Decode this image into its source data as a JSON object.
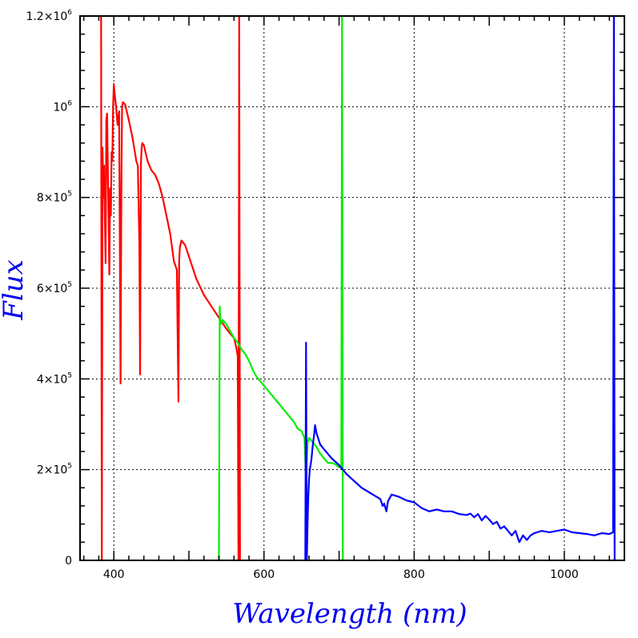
{
  "chart_data": {
    "type": "line",
    "title": "",
    "xlabel": "Wavelength (nm)",
    "ylabel": "Flux",
    "xlim": [
      355,
      1080
    ],
    "ylim": [
      0,
      1200000
    ],
    "grid": true,
    "xticks": [
      {
        "value": 400,
        "label": "400"
      },
      {
        "value": 600,
        "label": "600"
      },
      {
        "value": 800,
        "label": "800"
      },
      {
        "value": 1000,
        "label": "1000"
      }
    ],
    "yticks": [
      {
        "value": 0,
        "base": "0",
        "exp": ""
      },
      {
        "value": 200000,
        "base": "2×10",
        "exp": "5"
      },
      {
        "value": 400000,
        "base": "4×10",
        "exp": "5"
      },
      {
        "value": 600000,
        "base": "6×10",
        "exp": "5"
      },
      {
        "value": 800000,
        "base": "8×10",
        "exp": "5"
      },
      {
        "value": 1000000,
        "base": "10",
        "exp": "6"
      },
      {
        "value": 1200000,
        "base": "1.2×10",
        "exp": "6"
      }
    ],
    "series": [
      {
        "color": "#ff0000",
        "x": [
          383,
          384,
          385,
          386,
          387,
          388,
          389,
          390,
          391,
          392,
          393,
          394,
          395,
          396,
          397,
          398,
          399,
          400,
          401,
          403,
          405,
          407,
          408,
          409,
          410,
          411,
          412,
          415,
          420,
          425,
          430,
          432,
          434,
          435,
          436,
          437,
          438,
          440,
          445,
          450,
          455,
          460,
          465,
          470,
          475,
          480,
          484,
          485,
          486,
          487,
          488,
          490,
          495,
          500,
          510,
          520,
          530,
          540,
          550,
          555,
          560,
          563,
          565,
          566,
          567,
          568
        ],
        "y": [
          1200000,
          0,
          910000,
          800000,
          870000,
          750000,
          655000,
          970000,
          985000,
          860000,
          760000,
          630000,
          820000,
          760000,
          900000,
          880000,
          1000000,
          1050000,
          1030000,
          1000000,
          960000,
          990000,
          700000,
          390000,
          820000,
          1000000,
          1010000,
          1005000,
          970000,
          930000,
          880000,
          870000,
          700000,
          410000,
          870000,
          910000,
          920000,
          915000,
          880000,
          860000,
          850000,
          830000,
          800000,
          760000,
          720000,
          660000,
          640000,
          500000,
          350000,
          660000,
          690000,
          705000,
          695000,
          670000,
          620000,
          585000,
          560000,
          535000,
          510000,
          500000,
          490000,
          470000,
          450000,
          0,
          1200000,
          0
        ]
      },
      {
        "color": "#00ee00",
        "x": [
          540,
          541,
          542,
          545,
          550,
          555,
          560,
          565,
          570,
          575,
          580,
          585,
          590,
          600,
          610,
          620,
          630,
          640,
          645,
          650,
          654,
          656,
          658,
          660,
          665,
          670,
          675,
          680,
          685,
          690,
          695,
          700,
          703,
          704,
          705
        ],
        "y": [
          0,
          560000,
          520000,
          530000,
          520000,
          505000,
          490000,
          480000,
          465000,
          455000,
          440000,
          420000,
          405000,
          385000,
          365000,
          345000,
          325000,
          305000,
          290000,
          285000,
          270000,
          175000,
          260000,
          270000,
          260000,
          250000,
          235000,
          225000,
          215000,
          215000,
          212000,
          205000,
          205000,
          1200000,
          0
        ]
      },
      {
        "color": "#0000ff",
        "x": [
          655,
          656,
          657,
          658,
          659,
          660,
          661,
          663,
          665,
          667,
          668,
          670,
          675,
          680,
          690,
          700,
          710,
          720,
          730,
          740,
          750,
          755,
          758,
          760,
          763,
          765,
          770,
          780,
          790,
          800,
          810,
          820,
          830,
          840,
          850,
          860,
          870,
          875,
          880,
          885,
          890,
          895,
          900,
          905,
          910,
          915,
          920,
          925,
          930,
          935,
          940,
          945,
          950,
          955,
          960,
          970,
          980,
          990,
          1000,
          1010,
          1020,
          1030,
          1040,
          1050,
          1060,
          1065,
          1066,
          1067
        ],
        "y": [
          0,
          480000,
          0,
          80000,
          140000,
          180000,
          200000,
          220000,
          255000,
          280000,
          298000,
          280000,
          255000,
          245000,
          225000,
          210000,
          190000,
          175000,
          160000,
          150000,
          140000,
          135000,
          120000,
          125000,
          108000,
          130000,
          145000,
          140000,
          132000,
          128000,
          115000,
          108000,
          112000,
          108000,
          108000,
          102000,
          100000,
          103000,
          95000,
          102000,
          88000,
          98000,
          90000,
          80000,
          85000,
          70000,
          75000,
          65000,
          55000,
          65000,
          40000,
          55000,
          45000,
          55000,
          60000,
          65000,
          62000,
          65000,
          68000,
          62000,
          60000,
          58000,
          55000,
          60000,
          58000,
          62000,
          1200000,
          0
        ]
      }
    ]
  }
}
